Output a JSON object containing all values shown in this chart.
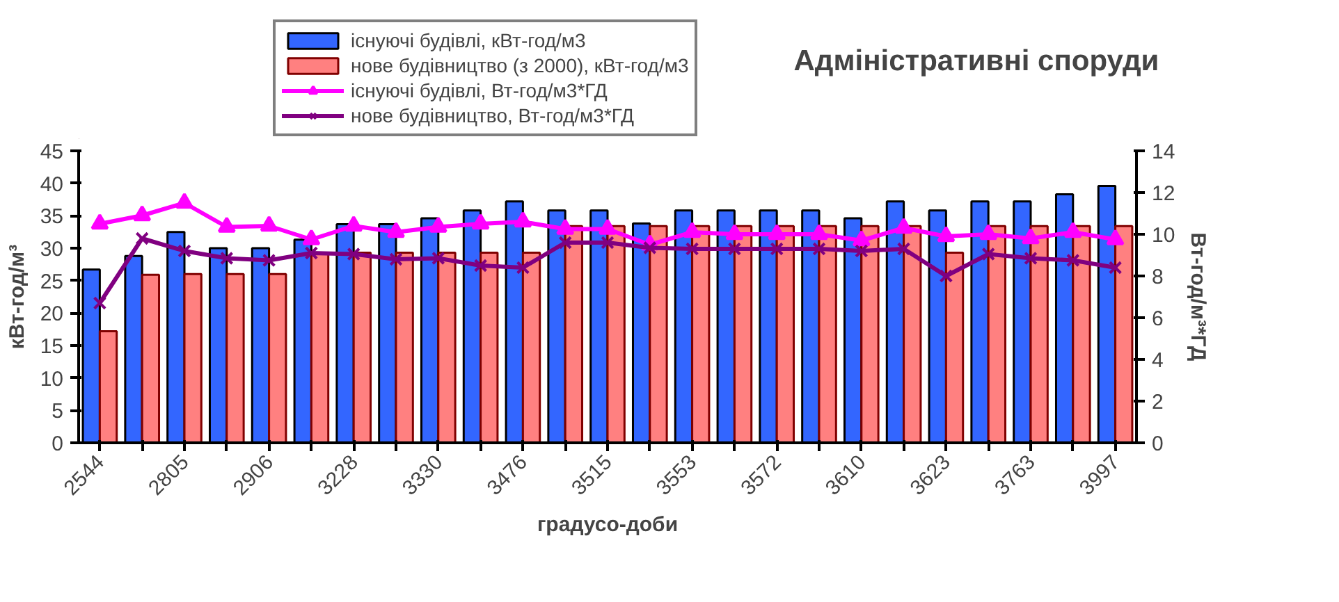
{
  "chart_data": {
    "type": "bar",
    "title": "Адміністративні споруди",
    "xlabel": "градусо-доби",
    "ylabel": "кВт-год/м³",
    "y2label": "Вт-год/м³*ГД",
    "categories": [
      "2544",
      null,
      "2805",
      null,
      "2906",
      null,
      "3228",
      null,
      "3330",
      null,
      "3476",
      null,
      "3515",
      null,
      "3553",
      null,
      "3572",
      null,
      "3610",
      null,
      "3623",
      null,
      "3763",
      null,
      "3997"
    ],
    "series": [
      {
        "name": "існуючі будівлі, кВт-год/м3",
        "color": "#3366ff",
        "values": [
          26.7,
          28.8,
          32.5,
          30,
          30,
          31.3,
          33.7,
          33.7,
          34.6,
          35.8,
          37.2,
          35.8,
          35.8,
          33.8,
          35.8,
          35.8,
          35.8,
          35.8,
          34.6,
          37.2,
          35.8,
          37.2,
          37.2,
          38.3,
          39.6
        ]
      },
      {
        "name": "нове будівництво (з 2000), кВт-год/м3",
        "color": "#ff8080",
        "values": [
          17.2,
          25.9,
          26,
          26,
          26,
          29.3,
          29.3,
          29.3,
          29.3,
          29.3,
          29.3,
          33.4,
          33.4,
          33.4,
          33.4,
          33.4,
          33.4,
          33.4,
          33.4,
          33.4,
          29.3,
          33.4,
          33.4,
          33.4,
          33.4
        ]
      },
      {
        "name": "існуючі будівлі, Вт-год/м3*ГД",
        "type": "line",
        "axis": "y2",
        "marker": "triangle",
        "color": "#ff00ff",
        "values": [
          10.5,
          10.9,
          11.5,
          10.35,
          10.4,
          9.75,
          10.4,
          10.1,
          10.35,
          10.5,
          10.6,
          10.25,
          10.25,
          9.5,
          10.1,
          10.0,
          10.0,
          10.0,
          9.7,
          10.3,
          9.9,
          10.0,
          9.8,
          10.1,
          9.75
        ]
      },
      {
        "name": "нове будівництво, Вт-год/м3*ГД",
        "type": "line",
        "axis": "y2",
        "marker": "cross",
        "color": "#800080",
        "values": [
          6.7,
          9.8,
          9.2,
          8.85,
          8.75,
          9.1,
          9.05,
          8.8,
          8.85,
          8.5,
          8.4,
          9.6,
          9.6,
          9.35,
          9.3,
          9.3,
          9.3,
          9.3,
          9.2,
          9.3,
          8.0,
          9.05,
          8.85,
          8.75,
          8.4
        ]
      }
    ],
    "ylim": [
      0,
      45
    ],
    "yticks": [
      0,
      5,
      10,
      15,
      20,
      25,
      30,
      35,
      40,
      45
    ],
    "y2lim": [
      0,
      14
    ],
    "y2ticks": [
      0,
      2,
      4,
      6,
      8,
      10,
      12,
      14
    ],
    "grid": false,
    "legend": "top"
  }
}
